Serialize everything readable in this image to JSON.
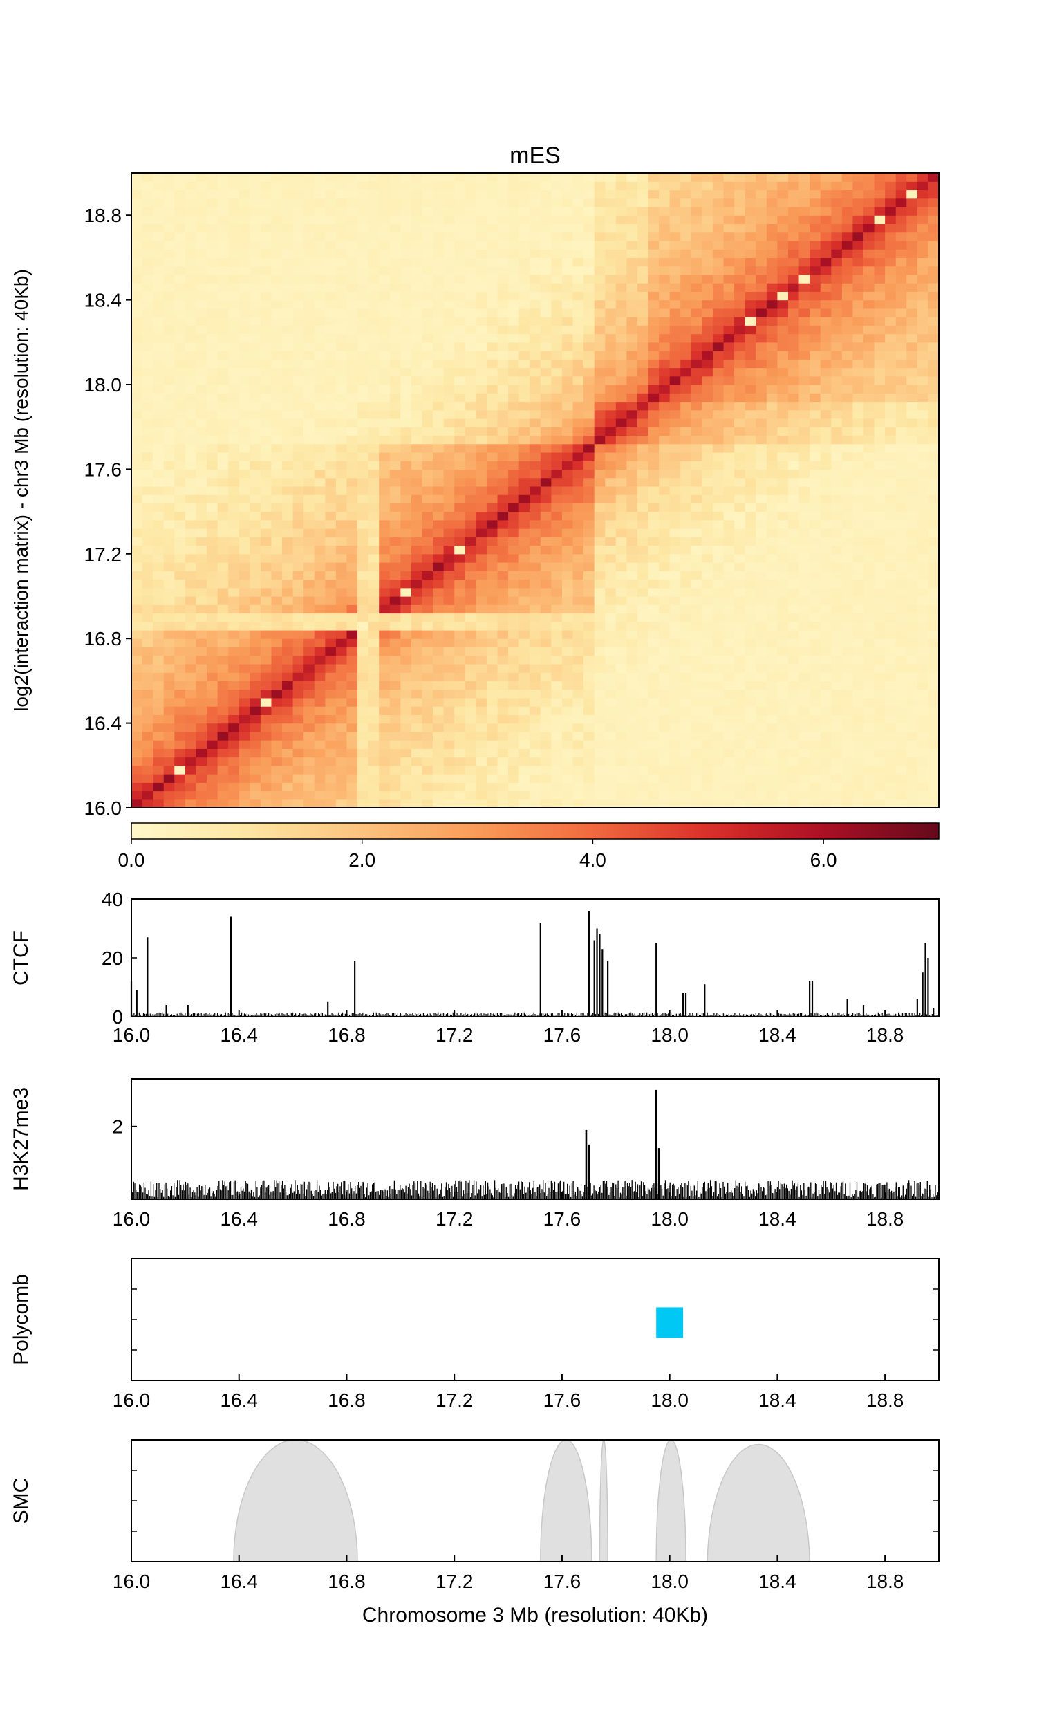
{
  "heatmap": {
    "title": "mES",
    "ylabel": "log2(interaction matrix) - chr3 Mb (resolution: 40Kb)",
    "xlim": [
      16.0,
      19.0
    ],
    "ylim": [
      16.0,
      19.0
    ],
    "ytick_labels": [
      "16.0",
      "16.4",
      "16.8",
      "17.2",
      "17.6",
      "18.0",
      "18.4",
      "18.8"
    ],
    "ytick_values": [
      16.0,
      16.4,
      16.8,
      17.2,
      17.6,
      18.0,
      18.4,
      18.8
    ],
    "colorbar": {
      "min": 0.0,
      "max": 7.0,
      "tick_labels": [
        "0.0",
        "2.0",
        "4.0",
        "6.0"
      ],
      "tick_values": [
        0.0,
        2.0,
        4.0,
        6.0
      ],
      "colors": [
        "#fff8c8",
        "#fde6a3",
        "#fcc37e",
        "#f99b58",
        "#f06a3e",
        "#d9302a",
        "#ab1024",
        "#650a1c"
      ]
    }
  },
  "x_axis_ticks": {
    "labels": [
      "16.0",
      "16.4",
      "16.8",
      "17.2",
      "17.6",
      "18.0",
      "18.4",
      "18.8"
    ],
    "values": [
      16.0,
      16.4,
      16.8,
      17.2,
      17.6,
      18.0,
      18.4,
      18.8
    ]
  },
  "tracks": {
    "ctcf": {
      "label": "CTCF",
      "ytick_labels": [
        "0",
        "20",
        "40"
      ]
    },
    "h3k27me3": {
      "label": "H3K27me3",
      "ytick_labels": [
        "2"
      ]
    },
    "polycomb": {
      "label": "Polycomb",
      "color": "#00c8f5"
    },
    "smc": {
      "label": "SMC",
      "color": "#e0e0e0",
      "xlabel": "Chromosome 3 Mb (resolution: 40Kb)"
    }
  },
  "chart_data": [
    {
      "type": "heatmap",
      "title": "mES",
      "ylabel": "log2(interaction matrix) - chr3 Mb (resolution: 40Kb)",
      "xlim": [
        16.0,
        19.0
      ],
      "ylim": [
        16.0,
        19.0
      ],
      "value_range": [
        0.0,
        7.0
      ],
      "domains_mb": [
        [
          16.0,
          16.88
        ],
        [
          16.88,
          17.72
        ],
        [
          17.72,
          17.92
        ],
        [
          17.92,
          19.0
        ]
      ],
      "diagonal_value_approx": 5.0
    },
    {
      "type": "bar",
      "name": "CTCF",
      "ylim": [
        0,
        40
      ],
      "x": [
        16.0,
        16.02,
        16.06,
        16.13,
        16.21,
        16.37,
        16.73,
        16.83,
        17.52,
        17.7,
        17.72,
        17.73,
        17.74,
        17.75,
        17.77,
        17.95,
        18.05,
        18.06,
        18.13,
        18.52,
        18.53,
        18.66,
        18.72,
        18.92,
        18.94,
        18.95,
        18.96,
        18.98
      ],
      "values": [
        12,
        9,
        27,
        4,
        4,
        34,
        5,
        19,
        32,
        36,
        26,
        30,
        28,
        23,
        19,
        25,
        8,
        8,
        11,
        12,
        12,
        6,
        4,
        6,
        15,
        25,
        20,
        3
      ]
    },
    {
      "type": "bar",
      "name": "H3K27me3",
      "ylim": [
        0,
        3.3
      ],
      "x": [
        17.69,
        17.7,
        17.95,
        17.96
      ],
      "values": [
        1.9,
        1.5,
        3.0,
        1.4
      ],
      "baseline_approx": 0.3
    },
    {
      "type": "bar",
      "name": "Polycomb",
      "x_start": [
        17.95
      ],
      "x_end": [
        18.05
      ]
    },
    {
      "type": "area",
      "name": "SMC",
      "xlabel": "Chromosome 3 Mb (resolution: 40Kb)",
      "arcs": [
        [
          16.38,
          16.84
        ],
        [
          17.52,
          17.71
        ],
        [
          17.74,
          17.77
        ],
        [
          17.95,
          18.06
        ],
        [
          18.14,
          18.52
        ]
      ]
    }
  ]
}
